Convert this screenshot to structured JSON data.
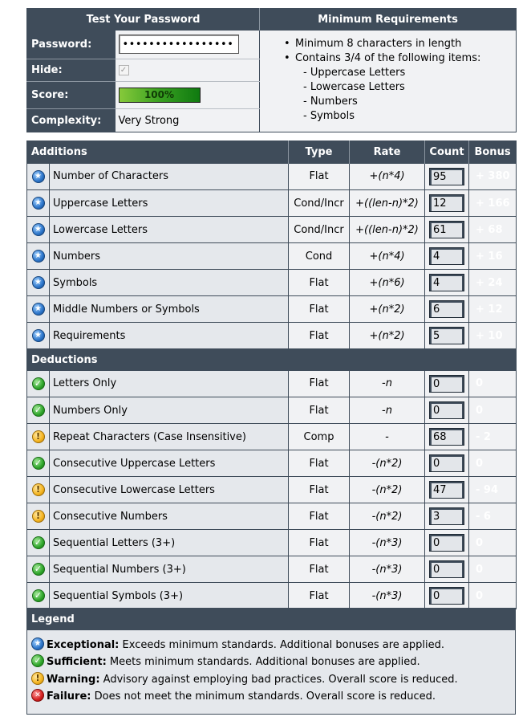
{
  "top": {
    "title_left": "Test Your Password",
    "title_right": "Minimum Requirements",
    "password_label": "Password:",
    "password_value": "•••••••••••••••••••",
    "hide_label": "Hide:",
    "score_label": "Score:",
    "score_text": "100%",
    "score_fraction": 1.0,
    "complexity_label": "Complexity:",
    "complexity_value": "Very Strong",
    "requirements": [
      {
        "text": "Minimum 8 characters in length",
        "sub": false
      },
      {
        "text": "Contains 3/4 of the following items:",
        "sub": false
      },
      {
        "text": "- Uppercase Letters",
        "sub": true
      },
      {
        "text": "- Lowercase Letters",
        "sub": true
      },
      {
        "text": "- Numbers",
        "sub": true
      },
      {
        "text": "- Symbols",
        "sub": true
      }
    ]
  },
  "columns": {
    "type": "Type",
    "rate": "Rate",
    "count": "Count",
    "bonus": "Bonus"
  },
  "colors": {
    "header": "#3f4c5a",
    "exceptional": "#2065a8",
    "sufficient": "#169c29",
    "warning": "#f36a12"
  },
  "additions": {
    "title": "Additions",
    "rows": [
      {
        "status": "exceptional",
        "icon": "exceptional-icon",
        "name": "Number of Characters",
        "type": "Flat",
        "rate": "+(n*4)",
        "count": "95",
        "bonus": "+ 380"
      },
      {
        "status": "exceptional",
        "icon": "exceptional-icon",
        "name": "Uppercase Letters",
        "type": "Cond/Incr",
        "rate": "+((len-n)*2)",
        "count": "12",
        "bonus": "+ 166"
      },
      {
        "status": "exceptional",
        "icon": "exceptional-icon",
        "name": "Lowercase Letters",
        "type": "Cond/Incr",
        "rate": "+((len-n)*2)",
        "count": "61",
        "bonus": "+ 68"
      },
      {
        "status": "exceptional",
        "icon": "exceptional-icon",
        "name": "Numbers",
        "type": "Cond",
        "rate": "+(n*4)",
        "count": "4",
        "bonus": "+ 16"
      },
      {
        "status": "exceptional",
        "icon": "exceptional-icon",
        "name": "Symbols",
        "type": "Flat",
        "rate": "+(n*6)",
        "count": "4",
        "bonus": "+ 24"
      },
      {
        "status": "exceptional",
        "icon": "exceptional-icon",
        "name": "Middle Numbers or Symbols",
        "type": "Flat",
        "rate": "+(n*2)",
        "count": "6",
        "bonus": "+ 12"
      },
      {
        "status": "exceptional",
        "icon": "exceptional-icon",
        "name": "Requirements",
        "type": "Flat",
        "rate": "+(n*2)",
        "count": "5",
        "bonus": "+ 10"
      }
    ]
  },
  "deductions": {
    "title": "Deductions",
    "rows": [
      {
        "status": "sufficient",
        "icon": "sufficient-icon",
        "name": "Letters Only",
        "type": "Flat",
        "rate": "-n",
        "count": "0",
        "bonus": "0"
      },
      {
        "status": "sufficient",
        "icon": "sufficient-icon",
        "name": "Numbers Only",
        "type": "Flat",
        "rate": "-n",
        "count": "0",
        "bonus": "0"
      },
      {
        "status": "warning",
        "icon": "warning-icon",
        "name": "Repeat Characters (Case Insensitive)",
        "type": "Comp",
        "rate": "-",
        "count": "68",
        "bonus": "- 2"
      },
      {
        "status": "sufficient",
        "icon": "sufficient-icon",
        "name": "Consecutive Uppercase Letters",
        "type": "Flat",
        "rate": "-(n*2)",
        "count": "0",
        "bonus": "0"
      },
      {
        "status": "warning",
        "icon": "warning-icon",
        "name": "Consecutive Lowercase Letters",
        "type": "Flat",
        "rate": "-(n*2)",
        "count": "47",
        "bonus": "- 94"
      },
      {
        "status": "warning",
        "icon": "warning-icon",
        "name": "Consecutive Numbers",
        "type": "Flat",
        "rate": "-(n*2)",
        "count": "3",
        "bonus": "- 6"
      },
      {
        "status": "sufficient",
        "icon": "sufficient-icon",
        "name": "Sequential Letters (3+)",
        "type": "Flat",
        "rate": "-(n*3)",
        "count": "0",
        "bonus": "0"
      },
      {
        "status": "sufficient",
        "icon": "sufficient-icon",
        "name": "Sequential Numbers (3+)",
        "type": "Flat",
        "rate": "-(n*3)",
        "count": "0",
        "bonus": "0"
      },
      {
        "status": "sufficient",
        "icon": "sufficient-icon",
        "name": "Sequential Symbols (3+)",
        "type": "Flat",
        "rate": "-(n*3)",
        "count": "0",
        "bonus": "0"
      }
    ]
  },
  "legend": {
    "title": "Legend",
    "items": [
      {
        "status": "exceptional",
        "icon": "exceptional-icon",
        "term": "Exceptional:",
        "desc": " Exceeds minimum standards. Additional bonuses are applied."
      },
      {
        "status": "sufficient",
        "icon": "sufficient-icon",
        "term": "Sufficient:",
        "desc": " Meets minimum standards. Additional bonuses are applied."
      },
      {
        "status": "warning",
        "icon": "warning-icon",
        "term": "Warning:",
        "desc": " Advisory against employing bad practices. Overall score is reduced."
      },
      {
        "status": "failure",
        "icon": "failure-icon",
        "term": "Failure:",
        "desc": " Does not meet the minimum standards. Overall score is reduced."
      }
    ]
  }
}
